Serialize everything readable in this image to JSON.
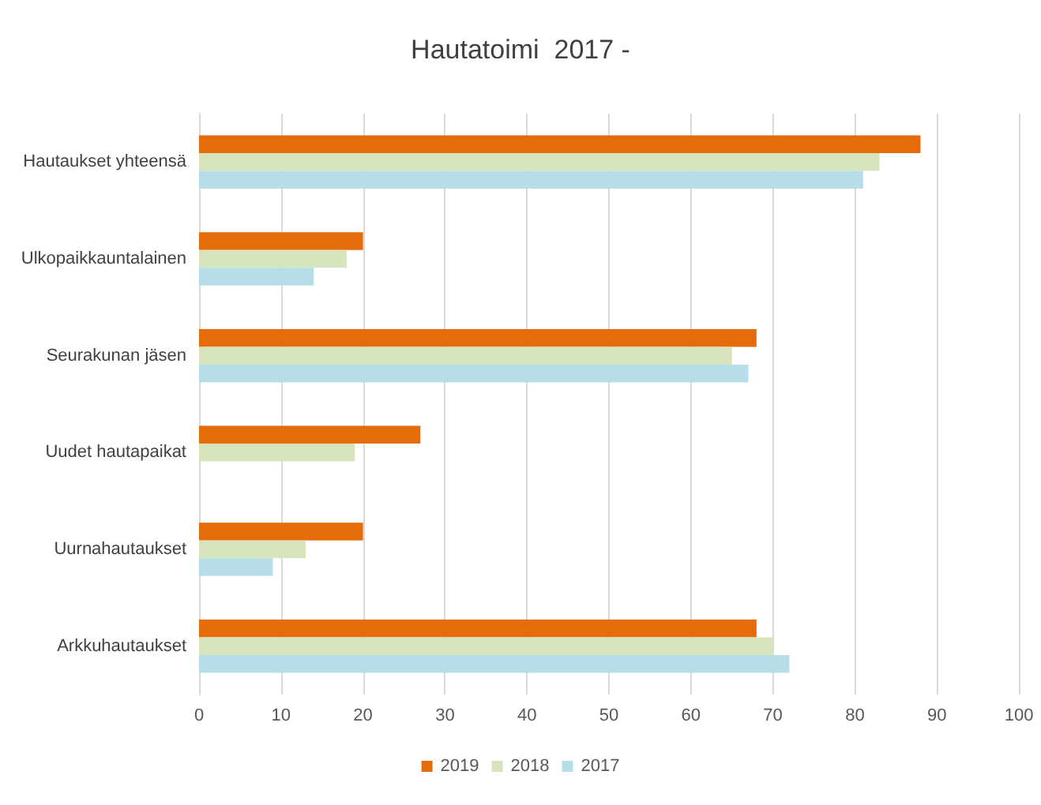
{
  "chart_data": {
    "type": "bar",
    "orientation": "horizontal",
    "title": "Hautatoimi  2017 -",
    "categories": [
      "Hautaukset yhteensä",
      "Ulkopaikkauntalainen",
      "Seurakunan jäsen",
      "Uudet hautapaikat",
      "Uurnahautaukset",
      "Arkkuhautaukset"
    ],
    "series": [
      {
        "name": "2019",
        "color": "#e46c0a",
        "values": [
          88,
          20,
          68,
          27,
          20,
          68
        ]
      },
      {
        "name": "2018",
        "color": "#d7e4bd",
        "values": [
          83,
          18,
          65,
          19,
          13,
          70
        ]
      },
      {
        "name": "2017",
        "color": "#b7dde8",
        "values": [
          81,
          14,
          67,
          null,
          9,
          72
        ]
      }
    ],
    "xlim": [
      0,
      100
    ],
    "xticks": [
      0,
      10,
      20,
      30,
      40,
      50,
      60,
      70,
      80,
      90,
      100
    ],
    "grid": "x",
    "legend": "bottom"
  }
}
